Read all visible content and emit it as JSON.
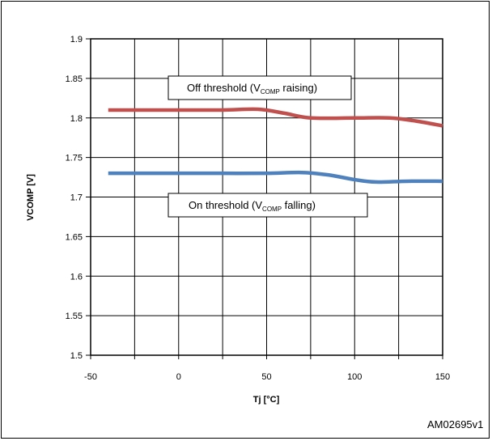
{
  "chart_data": {
    "type": "line",
    "xlabel": "Tj [°C]",
    "ylabel": "VCOMP [V]",
    "xlim": [
      -50,
      150
    ],
    "ylim": [
      1.5,
      1.9
    ],
    "xticks": [
      -50,
      0,
      50,
      100,
      150
    ],
    "yticks": [
      1.5,
      1.55,
      1.6,
      1.65,
      1.7,
      1.75,
      1.8,
      1.85,
      1.9
    ],
    "grid": true,
    "series": [
      {
        "color": "#c0504d",
        "x": [
          -40,
          0,
          25,
          45,
          60,
          75,
          100,
          120,
          135,
          150
        ],
        "y": [
          1.81,
          1.81,
          1.81,
          1.811,
          1.806,
          1.8,
          1.8,
          1.8,
          1.796,
          1.79
        ]
      },
      {
        "color": "#4f81bd",
        "x": [
          -40,
          0,
          25,
          50,
          70,
          85,
          100,
          112,
          130,
          150
        ],
        "y": [
          1.73,
          1.73,
          1.73,
          1.73,
          1.731,
          1.728,
          1.722,
          1.719,
          1.72,
          1.72
        ]
      }
    ],
    "annotations": [
      {
        "text": "Off threshold (V",
        "sub": "COMP",
        "rest": " raising)"
      },
      {
        "text": "On threshold (V",
        "sub": "COMP",
        "rest": " falling)"
      }
    ]
  },
  "figure_id": "AM02695v1"
}
